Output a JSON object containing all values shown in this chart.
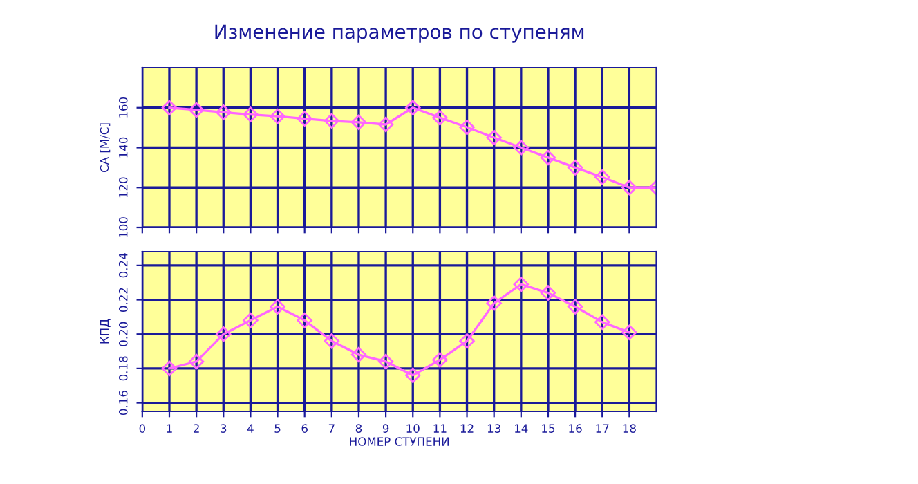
{
  "chart_data": [
    {
      "type": "line",
      "title": "Изменение параметров по ступеням",
      "ylabel": "СА [М/С]",
      "x": [
        1,
        2,
        3,
        4,
        5,
        6,
        7,
        8,
        9,
        10,
        11,
        12,
        13,
        14,
        15,
        16,
        17,
        18,
        19
      ],
      "series": [
        {
          "color": "#ff66ff",
          "values": [
            160,
            158.9,
            157.7,
            156.6,
            155.7,
            154.5,
            153.4,
            152.7,
            151.6,
            160,
            155,
            150.2,
            145,
            140,
            135,
            130,
            125.2,
            120,
            120
          ]
        }
      ],
      "xlim": [
        0,
        19
      ],
      "xticks": [
        0,
        1,
        2,
        3,
        4,
        5,
        6,
        7,
        8,
        9,
        10,
        11,
        12,
        13,
        14,
        15,
        16,
        17,
        18
      ],
      "ylim": [
        100,
        180
      ],
      "yticks": [
        100,
        120,
        140,
        160
      ],
      "grid": true,
      "marker": "diamond",
      "line_style": "solid",
      "tick_labels": "y"
    },
    {
      "type": "line",
      "ylabel": "КПД",
      "xlabel": "НОМЕР СТУПЕНИ",
      "x": [
        1,
        2,
        3,
        4,
        5,
        6,
        7,
        8,
        9,
        10,
        11,
        12,
        13,
        14,
        15,
        16,
        17,
        18
      ],
      "series": [
        {
          "color": "#ff66ff",
          "values": [
            0.18,
            0.184,
            0.2,
            0.208,
            0.216,
            0.208,
            0.196,
            0.188,
            0.184,
            0.176,
            0.185,
            0.196,
            0.218,
            0.229,
            0.224,
            0.216,
            0.207,
            0.201
          ]
        }
      ],
      "xlim": [
        0,
        19
      ],
      "xticks": [
        0,
        1,
        2,
        3,
        4,
        5,
        6,
        7,
        8,
        9,
        10,
        11,
        12,
        13,
        14,
        15,
        16,
        17,
        18
      ],
      "ylim": [
        0.155,
        0.248
      ],
      "yticks": [
        {
          "value": 0.16,
          "label": "0.16"
        },
        {
          "value": 0.18,
          "label": "0.18"
        },
        {
          "value": 0.2,
          "label": "0.20"
        },
        {
          "value": 0.22,
          "label": "0.22"
        },
        {
          "value": 0.24,
          "label": "0.24"
        }
      ],
      "grid": true,
      "marker": "diamond",
      "line_style": "solid"
    }
  ]
}
